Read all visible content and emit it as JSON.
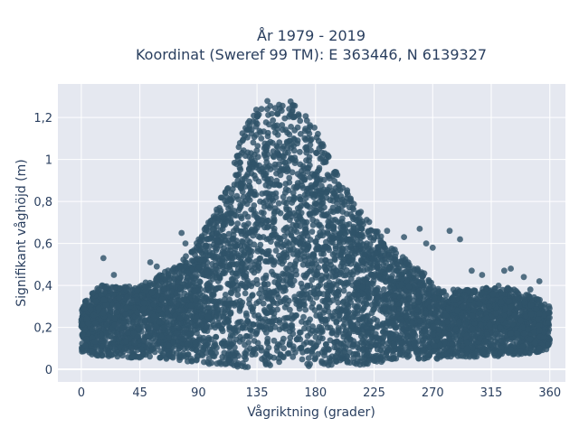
{
  "chart_data": {
    "type": "scatter",
    "title_line1": "År 1979 - 2019",
    "title_line2": "Koordinat (Sweref 99 TM): E 363446, N 6139327",
    "xlabel": "Vågriktning (grader)",
    "ylabel": "Signifikant våghöjd (m)",
    "xlim": [
      -18,
      372
    ],
    "ylim": [
      -0.06,
      1.36
    ],
    "x_ticks": [
      0,
      45,
      90,
      135,
      180,
      225,
      270,
      315,
      360
    ],
    "x_tick_labels": [
      "0",
      "45",
      "90",
      "135",
      "180",
      "225",
      "270",
      "315",
      "360"
    ],
    "y_ticks": [
      0,
      0.2,
      0.4,
      0.6,
      0.8,
      1.0,
      1.2
    ],
    "y_tick_labels": [
      "0",
      "0,2",
      "0,4",
      "0,6",
      "0,8",
      "1",
      "1,2"
    ],
    "grid": true,
    "marker_color": "#2f5369",
    "background_color": "#e5e8f0",
    "envelope": {
      "x": [
        0,
        15,
        30,
        45,
        60,
        75,
        90,
        105,
        115,
        125,
        135,
        145,
        155,
        165,
        175,
        185,
        195,
        205,
        215,
        225,
        235,
        245,
        255,
        265,
        275,
        290,
        305,
        320,
        335,
        350,
        360
      ],
      "ymax": [
        0.32,
        0.4,
        0.4,
        0.4,
        0.45,
        0.5,
        0.62,
        0.78,
        0.95,
        1.15,
        1.28,
        1.28,
        1.28,
        1.28,
        1.22,
        1.08,
        0.95,
        0.85,
        0.75,
        0.68,
        0.6,
        0.55,
        0.5,
        0.45,
        0.38,
        0.38,
        0.38,
        0.4,
        0.38,
        0.34,
        0.3
      ],
      "ymin": [
        0.08,
        0.06,
        0.06,
        0.05,
        0.05,
        0.04,
        0.03,
        0.02,
        0.01,
        0.01,
        0.01,
        0.01,
        0.01,
        0.01,
        0.01,
        0.01,
        0.01,
        0.02,
        0.02,
        0.03,
        0.04,
        0.05,
        0.05,
        0.05,
        0.05,
        0.06,
        0.06,
        0.06,
        0.07,
        0.08,
        0.1
      ]
    },
    "outliers": {
      "x": [
        17,
        25,
        53,
        58,
        77,
        80,
        85,
        95,
        98,
        104,
        113,
        235,
        248,
        260,
        265,
        270,
        283,
        291,
        300,
        308,
        325,
        330,
        340,
        345,
        352
      ],
      "y": [
        0.53,
        0.45,
        0.51,
        0.49,
        0.65,
        0.6,
        0.56,
        0.65,
        0.62,
        0.7,
        0.74,
        0.66,
        0.63,
        0.67,
        0.6,
        0.58,
        0.66,
        0.62,
        0.47,
        0.45,
        0.47,
        0.48,
        0.44,
        0.38,
        0.42
      ]
    }
  }
}
